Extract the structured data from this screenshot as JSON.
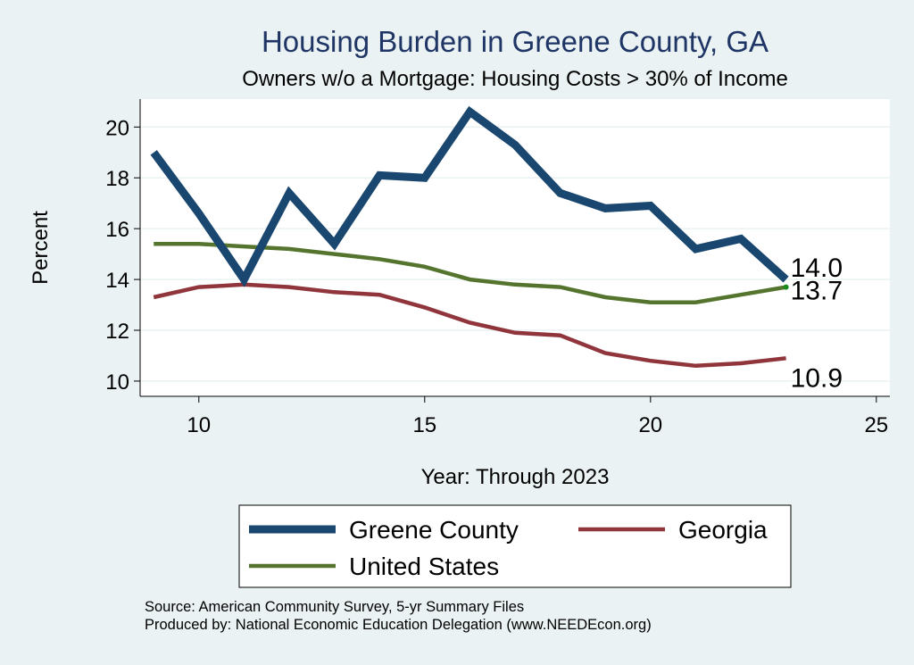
{
  "chart_data": {
    "type": "line",
    "title": "Housing Burden in Greene County, GA",
    "subtitle": "Owners w/o a Mortgage: Housing Costs > 30% of Income",
    "xlabel": "Year: Through 2023",
    "ylabel": "Percent",
    "xlim": [
      8.7,
      25.3
    ],
    "ylim": [
      9.4,
      21.1
    ],
    "xticks": [
      10,
      15,
      20,
      25
    ],
    "yticks": [
      10,
      12,
      14,
      16,
      18,
      20
    ],
    "grid": true,
    "legend_position": "bottom",
    "x": [
      9,
      10,
      11,
      12,
      13,
      14,
      15,
      16,
      17,
      18,
      19,
      20,
      21,
      22,
      23
    ],
    "series": [
      {
        "name": "Greene County",
        "color": "#1a476f",
        "values": [
          19.0,
          16.6,
          14.0,
          17.4,
          15.4,
          18.1,
          18.0,
          20.6,
          19.3,
          17.4,
          16.8,
          16.9,
          15.2,
          15.6,
          14.0
        ],
        "end_label": "14.0"
      },
      {
        "name": "Georgia",
        "color": "#90353b",
        "values": [
          13.3,
          13.7,
          13.8,
          13.7,
          13.5,
          13.4,
          12.9,
          12.3,
          11.9,
          11.8,
          11.1,
          10.8,
          10.6,
          10.7,
          10.9
        ],
        "end_label": "10.9"
      },
      {
        "name": "United States",
        "color": "#55752f",
        "values": [
          15.4,
          15.4,
          15.3,
          15.2,
          15.0,
          14.8,
          14.5,
          14.0,
          13.8,
          13.7,
          13.3,
          13.1,
          13.1,
          13.4,
          13.7
        ],
        "end_label": "13.7"
      }
    ]
  },
  "source_line_1": "Source: American Community Survey, 5-yr Summary Files",
  "source_line_2": "Produced by: National Economic Education Delegation (www.NEEDEcon.org)",
  "colors": {
    "background": "#eaf2f3",
    "plot_background": "#ffffff",
    "title": "#1f3565"
  }
}
